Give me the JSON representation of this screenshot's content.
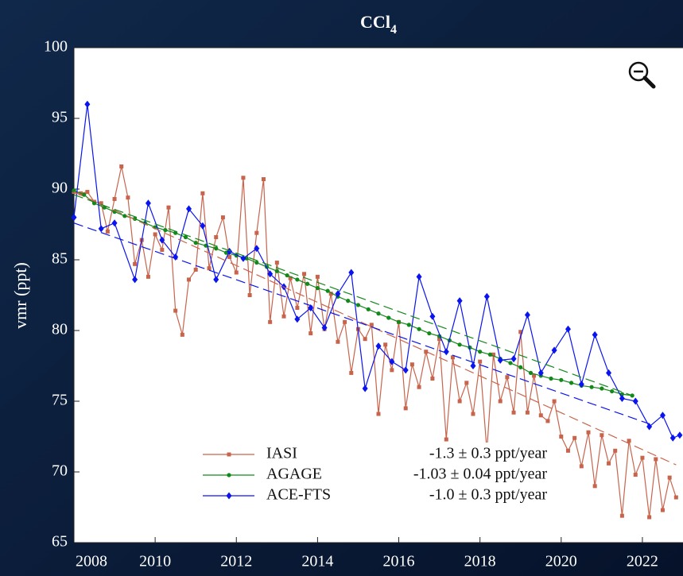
{
  "chart_data": {
    "type": "line",
    "title": "CCl",
    "title_subscript": "4",
    "ylabel": "vmr (ppt)",
    "xlim": [
      2008,
      2023
    ],
    "xticks": [
      2008,
      2010,
      2012,
      2014,
      2016,
      2018,
      2020,
      2022
    ],
    "ylim": [
      65,
      100
    ],
    "yticks": [
      65,
      70,
      75,
      80,
      85,
      90,
      95,
      100
    ],
    "grid": false,
    "legend": "lower center",
    "series": [
      {
        "name": "IASI",
        "trend_label": "-1.3 ± 0.3 ppt/year",
        "color": "#c8644c",
        "marker": "square",
        "x": [
          2008.0,
          2008.17,
          2008.33,
          2008.5,
          2008.67,
          2008.83,
          2009.0,
          2009.17,
          2009.33,
          2009.5,
          2009.67,
          2009.83,
          2010.0,
          2010.17,
          2010.33,
          2010.5,
          2010.67,
          2010.83,
          2011.0,
          2011.17,
          2011.33,
          2011.5,
          2011.67,
          2011.83,
          2012.0,
          2012.17,
          2012.33,
          2012.5,
          2012.67,
          2012.83,
          2013.0,
          2013.17,
          2013.33,
          2013.5,
          2013.67,
          2013.83,
          2014.0,
          2014.17,
          2014.33,
          2014.5,
          2014.67,
          2014.83,
          2015.0,
          2015.17,
          2015.33,
          2015.5,
          2015.67,
          2015.83,
          2016.0,
          2016.17,
          2016.33,
          2016.5,
          2016.67,
          2016.83,
          2017.0,
          2017.17,
          2017.33,
          2017.5,
          2017.67,
          2017.83,
          2018.0,
          2018.17,
          2018.33,
          2018.5,
          2018.67,
          2018.83,
          2019.0,
          2019.17,
          2019.33,
          2019.5,
          2019.67,
          2019.83,
          2020.0,
          2020.17,
          2020.33,
          2020.5,
          2020.67,
          2020.83,
          2021.0,
          2021.17,
          2021.33,
          2021.5,
          2021.67,
          2021.83,
          2022.0,
          2022.17,
          2022.33,
          2022.5,
          2022.67,
          2022.83
        ],
        "values": [
          89.8,
          89.7,
          89.8,
          89.1,
          89.0,
          87.0,
          89.3,
          91.6,
          89.4,
          84.7,
          86.4,
          83.8,
          86.8,
          85.7,
          88.7,
          81.4,
          79.7,
          83.6,
          84.3,
          89.7,
          84.4,
          86.6,
          88.0,
          85.2,
          84.1,
          90.8,
          82.5,
          86.9,
          90.7,
          80.6,
          84.8,
          81.0,
          83.7,
          81.6,
          84.0,
          79.8,
          83.8,
          80.1,
          82.6,
          79.2,
          80.6,
          77.0,
          80.1,
          79.4,
          80.4,
          74.1,
          79.0,
          77.2,
          80.6,
          74.5,
          77.6,
          76.0,
          78.5,
          76.6,
          79.4,
          72.3,
          78.1,
          75.0,
          76.3,
          74.1,
          77.8,
          71.5,
          78.3,
          75.0,
          76.7,
          74.2,
          79.9,
          74.2,
          76.8,
          74.0,
          73.6,
          75.0,
          72.5,
          71.5,
          72.4,
          70.4,
          72.8,
          69.0,
          72.6,
          70.6,
          71.5,
          66.9,
          72.2,
          69.8,
          71.0,
          66.8,
          70.9,
          67.3,
          69.6,
          68.2
        ],
        "trend_x": [
          2008,
          2022.83
        ],
        "trend_values": [
          89.8,
          70.5
        ]
      },
      {
        "name": "AGAGE",
        "trend_label": "-1.03 ± 0.04 ppt/year",
        "color": "#12891a",
        "marker": "dot",
        "x": [
          2008.0,
          2008.25,
          2008.5,
          2008.75,
          2009.0,
          2009.25,
          2009.5,
          2009.75,
          2010.0,
          2010.25,
          2010.5,
          2010.75,
          2011.0,
          2011.25,
          2011.5,
          2011.75,
          2012.0,
          2012.25,
          2012.5,
          2012.75,
          2013.0,
          2013.25,
          2013.5,
          2013.75,
          2014.0,
          2014.25,
          2014.5,
          2014.75,
          2015.0,
          2015.25,
          2015.5,
          2015.75,
          2016.0,
          2016.25,
          2016.5,
          2016.75,
          2017.0,
          2017.25,
          2017.5,
          2017.75,
          2018.0,
          2018.25,
          2018.5,
          2018.75,
          2019.0,
          2019.25,
          2019.5,
          2019.75,
          2020.0,
          2020.25,
          2020.5,
          2020.75,
          2021.0,
          2021.25,
          2021.5,
          2021.75
        ],
        "values": [
          89.9,
          89.6,
          89.0,
          88.7,
          88.4,
          88.1,
          87.9,
          87.6,
          87.3,
          87.1,
          86.9,
          86.6,
          86.2,
          86.0,
          85.8,
          85.5,
          85.3,
          85.1,
          84.8,
          84.5,
          84.2,
          83.9,
          83.6,
          83.3,
          83.0,
          82.8,
          82.4,
          82.1,
          81.8,
          81.5,
          81.2,
          80.9,
          80.6,
          80.4,
          80.1,
          79.8,
          79.6,
          79.3,
          79.0,
          78.8,
          78.5,
          78.3,
          78.0,
          77.7,
          77.4,
          77.0,
          76.8,
          76.6,
          76.5,
          76.3,
          76.1,
          76.0,
          75.9,
          75.7,
          75.5,
          75.4
        ],
        "trend_x": [
          2008,
          2021.75
        ],
        "trend_values": [
          89.6,
          75.4
        ]
      },
      {
        "name": "ACE-FTS",
        "trend_label": "-1.0 ± 0.3 ppt/year",
        "color": "#0a14f0",
        "marker": "diamond",
        "x": [
          2008.0,
          2008.33,
          2008.67,
          2009.0,
          2009.5,
          2009.83,
          2010.17,
          2010.5,
          2010.83,
          2011.17,
          2011.5,
          2011.83,
          2012.17,
          2012.5,
          2012.83,
          2013.17,
          2013.5,
          2013.83,
          2014.17,
          2014.5,
          2014.83,
          2015.17,
          2015.5,
          2015.83,
          2016.17,
          2016.5,
          2016.83,
          2017.17,
          2017.5,
          2017.83,
          2018.17,
          2018.5,
          2018.83,
          2019.17,
          2019.5,
          2019.83,
          2020.17,
          2020.5,
          2020.83,
          2021.17,
          2021.5,
          2021.83,
          2022.17,
          2022.5,
          2022.75,
          2022.92
        ],
        "values": [
          88.0,
          96.0,
          87.2,
          87.6,
          83.6,
          89.0,
          86.4,
          85.2,
          88.6,
          87.4,
          83.6,
          85.6,
          85.1,
          85.8,
          84.0,
          83.1,
          80.8,
          81.6,
          80.2,
          82.6,
          84.1,
          75.9,
          78.9,
          77.8,
          77.2,
          83.8,
          81.0,
          78.5,
          82.1,
          77.5,
          82.4,
          77.9,
          78.0,
          81.1,
          77.0,
          78.6,
          80.1,
          76.2,
          79.7,
          77.0,
          75.2,
          75.0,
          73.2,
          74.0,
          72.4,
          72.6
        ],
        "trend_x": [
          2008,
          2022.17
        ],
        "trend_values": [
          87.6,
          73.4
        ]
      }
    ]
  }
}
